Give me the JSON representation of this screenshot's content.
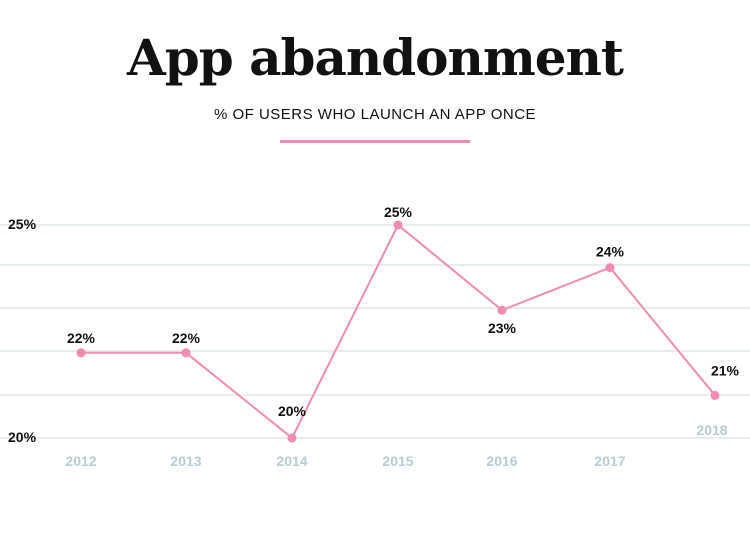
{
  "header": {
    "title": "App abandonment",
    "subtitle": "% OF USERS WHO LAUNCH AN APP ONCE"
  },
  "chart_data": {
    "type": "line",
    "title": "App abandonment",
    "subtitle": "% OF USERS WHO LAUNCH AN APP ONCE",
    "categories": [
      "2012",
      "2013",
      "2014",
      "2015",
      "2016",
      "2017",
      "2018"
    ],
    "series": [
      {
        "values": [
          22,
          22,
          20,
          25,
          23,
          24,
          21
        ]
      }
    ],
    "data_labels": [
      "22%",
      "22%",
      "20%",
      "25%",
      "23%",
      "24%",
      "21%"
    ],
    "y_tick_labels": [
      "20%",
      "25%"
    ],
    "ylim": [
      20,
      25
    ],
    "grid": true,
    "colors": {
      "line": "#f08cb2",
      "grid": "#dde8ea",
      "x_tick": "#b7cdd3",
      "text": "#111111"
    }
  }
}
